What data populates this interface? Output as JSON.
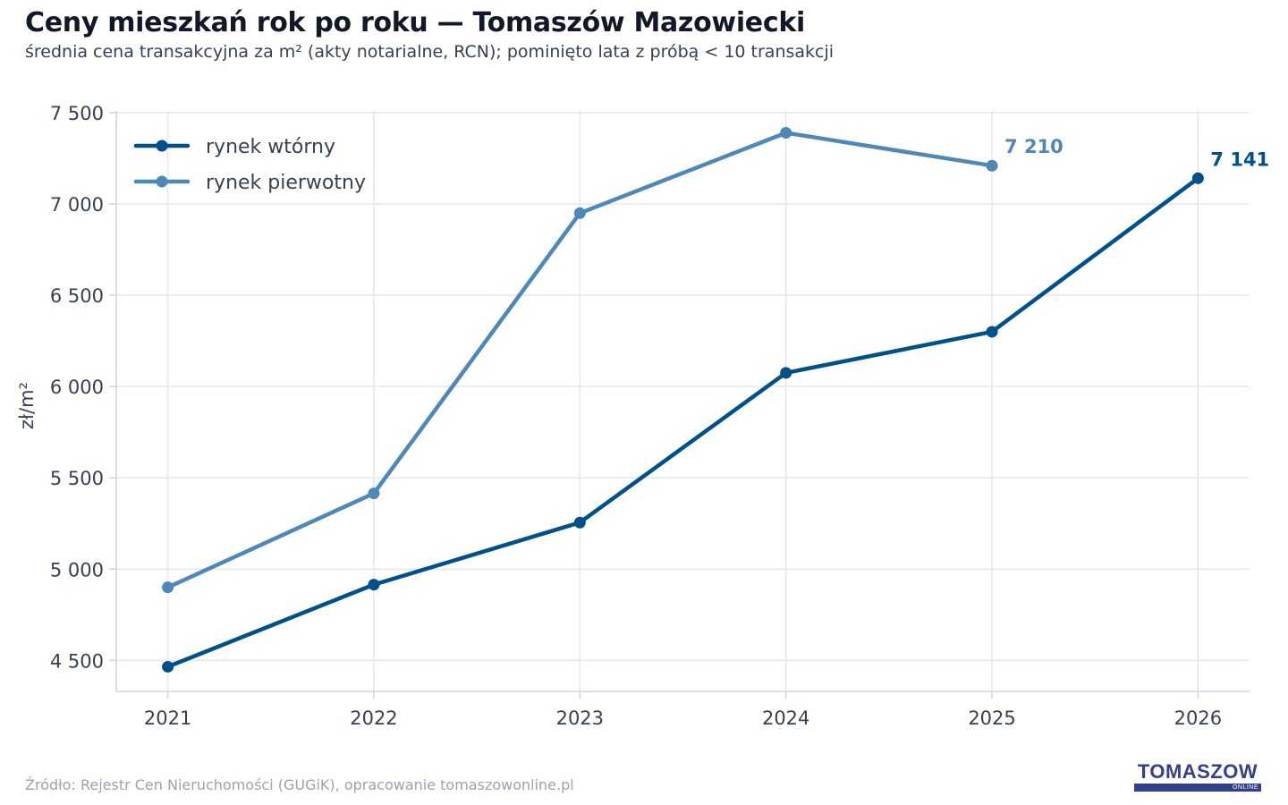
{
  "header": {
    "title": "Ceny mieszkań rok po roku — Tomaszów Mazowiecki",
    "subtitle": "średnia cena transakcyjna za m² (akty notarialne, RCN); pominięto lata z próbą < 10 transakcji"
  },
  "footer": {
    "source": "Źródło: Rejestr Cen Nieruchomości (GUGiK), opracowanie tomaszowonline.pl"
  },
  "logo": {
    "text": "TOMASZOW",
    "subtext": "ONLINE",
    "color": "#34408c"
  },
  "chart_data": {
    "type": "line",
    "title": "Ceny mieszkań rok po roku — Tomaszów Mazowiecki",
    "subtitle": "średnia cena transakcyjna za m² (akty notarialne, RCN); pominięto lata z próbą < 10 transakcji",
    "xlabel": "",
    "ylabel": "zł/m²",
    "x": [
      "2021",
      "2022",
      "2023",
      "2024",
      "2025",
      "2026"
    ],
    "xlim": [
      2020.75,
      2026.25
    ],
    "ylim": [
      4330,
      7510
    ],
    "yticks": [
      4500,
      5000,
      5500,
      6000,
      6500,
      7000,
      7500
    ],
    "ytick_labels": [
      "4 500",
      "5 000",
      "5 500",
      "6 000",
      "6 500",
      "7 000",
      "7 500"
    ],
    "grid": true,
    "legend_position": "top-left",
    "series": [
      {
        "name": "rynek wtórny",
        "color": "#00508a",
        "values": [
          4465,
          4915,
          5255,
          6075,
          6300,
          7141
        ],
        "end_label": "7 141"
      },
      {
        "name": "rynek pierwotny",
        "color": "#4d88b8",
        "values": [
          4900,
          5415,
          6950,
          7390,
          7210,
          null
        ],
        "end_label": "7 210"
      }
    ]
  }
}
